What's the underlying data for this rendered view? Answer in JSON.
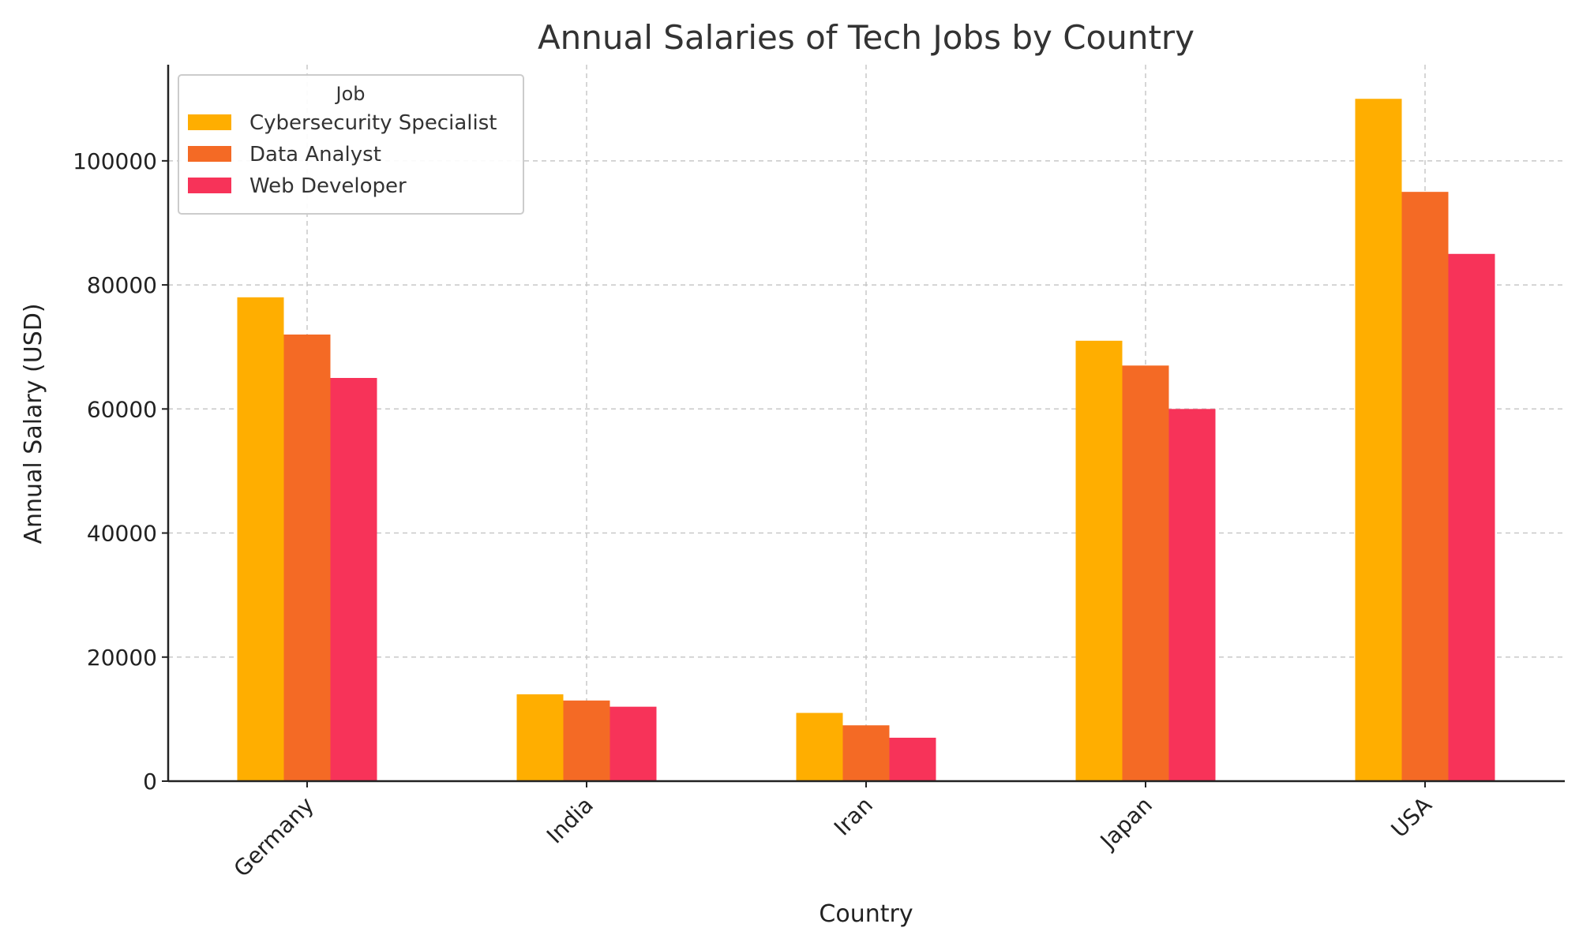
{
  "chart_data": {
    "type": "bar",
    "title": "Annual Salaries of Tech Jobs by Country",
    "xlabel": "Country",
    "ylabel": "Annual Salary (USD)",
    "categories": [
      "Germany",
      "India",
      "Iran",
      "Japan",
      "USA"
    ],
    "series": [
      {
        "name": "Cybersecurity Specialist",
        "values": [
          78000,
          14000,
          11000,
          71000,
          110000
        ],
        "color": "#FFAE00"
      },
      {
        "name": "Data Analyst",
        "values": [
          72000,
          13000,
          9000,
          67000,
          95000
        ],
        "color": "#F46A25"
      },
      {
        "name": "Web Developer",
        "values": [
          65000,
          12000,
          7000,
          60000,
          85000
        ],
        "color": "#F73359"
      }
    ],
    "ylim": [
      0,
      115500
    ],
    "yticks": [
      0,
      20000,
      40000,
      60000,
      80000,
      100000
    ],
    "grid": true,
    "legend": {
      "title": "Job",
      "position": "top-left"
    }
  }
}
